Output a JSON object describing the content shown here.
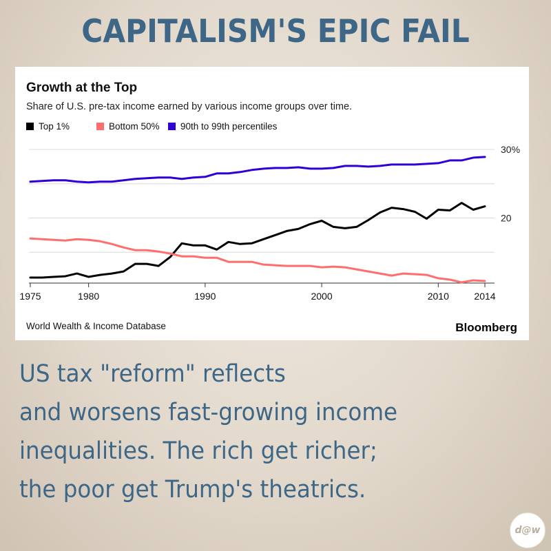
{
  "headline": "CAPITALISM'S EPIC FAIL",
  "caption_lines": [
    "US tax \"reform\" reflects",
    "and worsens fast-growing income",
    "inequalities. The rich get richer;",
    "the poor get Trump's theatrics."
  ],
  "badge": "d@w",
  "chart_data": {
    "type": "line",
    "title": "Growth at the Top",
    "subtitle": "Share of U.S. pre-tax income earned by various income groups over time.",
    "source": "World Wealth & Income Database",
    "brand": "Bloomberg",
    "x": [
      1975,
      1976,
      1977,
      1978,
      1979,
      1980,
      1981,
      1982,
      1983,
      1984,
      1985,
      1986,
      1987,
      1988,
      1989,
      1990,
      1991,
      1992,
      1993,
      1994,
      1995,
      1996,
      1997,
      1998,
      1999,
      2000,
      2001,
      2002,
      2003,
      2004,
      2005,
      2006,
      2007,
      2008,
      2009,
      2010,
      2011,
      2012,
      2013,
      2014
    ],
    "xlim": [
      1975,
      2014
    ],
    "x_ticks": [
      1975,
      1980,
      1990,
      2000,
      2010,
      2014
    ],
    "ylim": [
      10.5,
      30
    ],
    "y_ticks": [
      {
        "value": 30,
        "label": "30%"
      },
      {
        "value": 25,
        "label": ""
      },
      {
        "value": 20,
        "label": "20"
      },
      {
        "value": 15,
        "label": ""
      }
    ],
    "grid": true,
    "legend": "top-left",
    "series": [
      {
        "name": "Top 1%",
        "color": "#000000",
        "values": [
          11.3,
          11.3,
          11.4,
          11.5,
          11.9,
          11.4,
          11.7,
          11.9,
          12.2,
          13.3,
          13.3,
          13.0,
          14.3,
          16.3,
          16.0,
          16.0,
          15.4,
          16.5,
          16.2,
          16.3,
          16.9,
          17.5,
          18.1,
          18.4,
          19.1,
          19.6,
          18.7,
          18.5,
          18.7,
          19.7,
          20.8,
          21.5,
          21.3,
          20.9,
          19.9,
          21.2,
          21.1,
          22.2,
          21.2,
          21.7
        ]
      },
      {
        "name": "Bottom 50%",
        "color": "#ff6e6e",
        "values": [
          17.0,
          16.9,
          16.8,
          16.7,
          16.9,
          16.8,
          16.6,
          16.2,
          15.7,
          15.3,
          15.3,
          15.1,
          14.8,
          14.4,
          14.4,
          14.2,
          14.2,
          13.6,
          13.6,
          13.6,
          13.2,
          13.1,
          13.0,
          13.0,
          13.0,
          12.8,
          12.9,
          12.8,
          12.5,
          12.2,
          11.9,
          11.6,
          11.9,
          11.8,
          11.7,
          11.2,
          11.0,
          10.6,
          10.9,
          10.8
        ]
      },
      {
        "name": "90th to 99th percentiles",
        "color": "#2f00d5",
        "values": [
          25.3,
          25.4,
          25.5,
          25.5,
          25.3,
          25.2,
          25.3,
          25.3,
          25.5,
          25.7,
          25.8,
          25.9,
          25.9,
          25.7,
          25.9,
          26.0,
          26.5,
          26.5,
          26.7,
          27.0,
          27.2,
          27.3,
          27.3,
          27.4,
          27.2,
          27.2,
          27.3,
          27.6,
          27.6,
          27.5,
          27.6,
          27.8,
          27.8,
          27.8,
          27.9,
          28.0,
          28.4,
          28.4,
          28.8,
          28.9
        ]
      }
    ]
  }
}
